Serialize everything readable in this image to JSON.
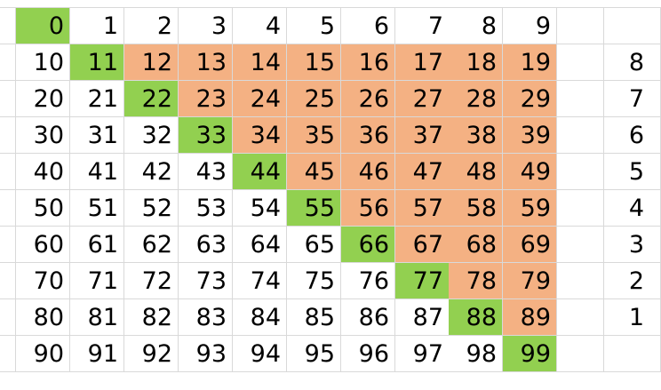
{
  "colors": {
    "diagonal": "#92d050",
    "upper_triangle": "#f4b183",
    "gridline": "#d9d9d9"
  },
  "grid": {
    "rows": [
      [
        "0",
        "1",
        "2",
        "3",
        "4",
        "5",
        "6",
        "7",
        "8",
        "9"
      ],
      [
        "10",
        "11",
        "12",
        "13",
        "14",
        "15",
        "16",
        "17",
        "18",
        "19"
      ],
      [
        "20",
        "21",
        "22",
        "23",
        "24",
        "25",
        "26",
        "27",
        "28",
        "29"
      ],
      [
        "30",
        "31",
        "32",
        "33",
        "34",
        "35",
        "36",
        "37",
        "38",
        "39"
      ],
      [
        "40",
        "41",
        "42",
        "43",
        "44",
        "45",
        "46",
        "47",
        "48",
        "49"
      ],
      [
        "50",
        "51",
        "52",
        "53",
        "54",
        "55",
        "56",
        "57",
        "58",
        "59"
      ],
      [
        "60",
        "61",
        "62",
        "63",
        "64",
        "65",
        "66",
        "67",
        "68",
        "69"
      ],
      [
        "70",
        "71",
        "72",
        "73",
        "74",
        "75",
        "76",
        "77",
        "78",
        "79"
      ],
      [
        "80",
        "81",
        "82",
        "83",
        "84",
        "85",
        "86",
        "87",
        "88",
        "89"
      ],
      [
        "90",
        "91",
        "92",
        "93",
        "94",
        "95",
        "96",
        "97",
        "98",
        "99"
      ]
    ],
    "side_column": [
      "",
      "8",
      "7",
      "6",
      "5",
      "4",
      "3",
      "2",
      "1",
      ""
    ]
  }
}
